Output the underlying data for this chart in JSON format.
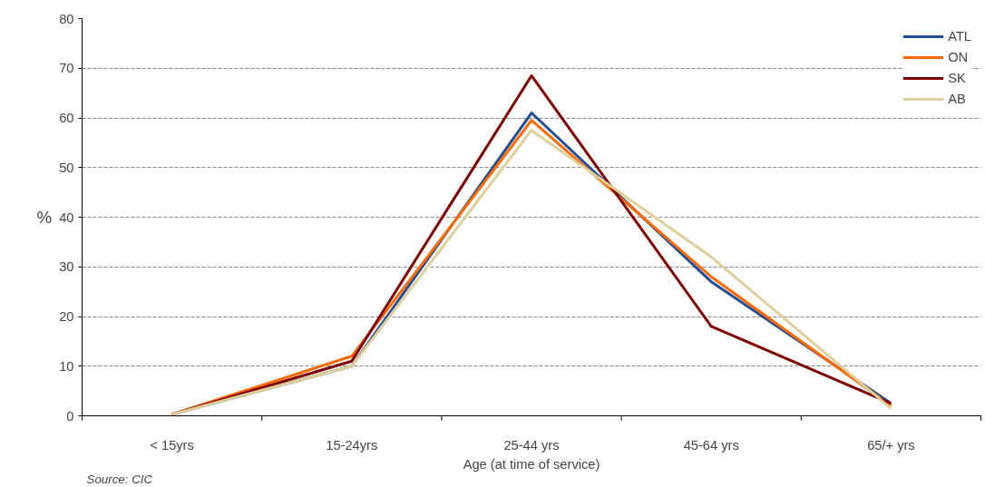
{
  "chart_data": {
    "type": "line",
    "xlabel": "Age (at time of service)",
    "ylabel": "%",
    "categories": [
      "< 15yrs",
      "15-24yrs",
      "25-44 yrs",
      "45-64 yrs",
      "65/+ yrs"
    ],
    "series": [
      {
        "name": "ATL",
        "color": "#1f4e99",
        "values": [
          0.3,
          10,
          61,
          27,
          2.5
        ]
      },
      {
        "name": "ON",
        "color": "#ff6a00",
        "values": [
          0.3,
          12,
          59.5,
          28,
          2
        ]
      },
      {
        "name": "SK",
        "color": "#800000",
        "values": [
          0.3,
          11,
          68.5,
          18,
          2.5
        ]
      },
      {
        "name": "AB",
        "color": "#ddd09a",
        "values": [
          0.3,
          10,
          57.5,
          32,
          1.5
        ]
      }
    ],
    "ylim": [
      0,
      80
    ],
    "yticks": [
      0,
      10,
      20,
      30,
      40,
      50,
      60,
      70,
      80
    ],
    "grid": "y",
    "legend": "top right",
    "marker": "none",
    "line_style": "solid",
    "annotations": [
      "Source: CIC"
    ]
  }
}
